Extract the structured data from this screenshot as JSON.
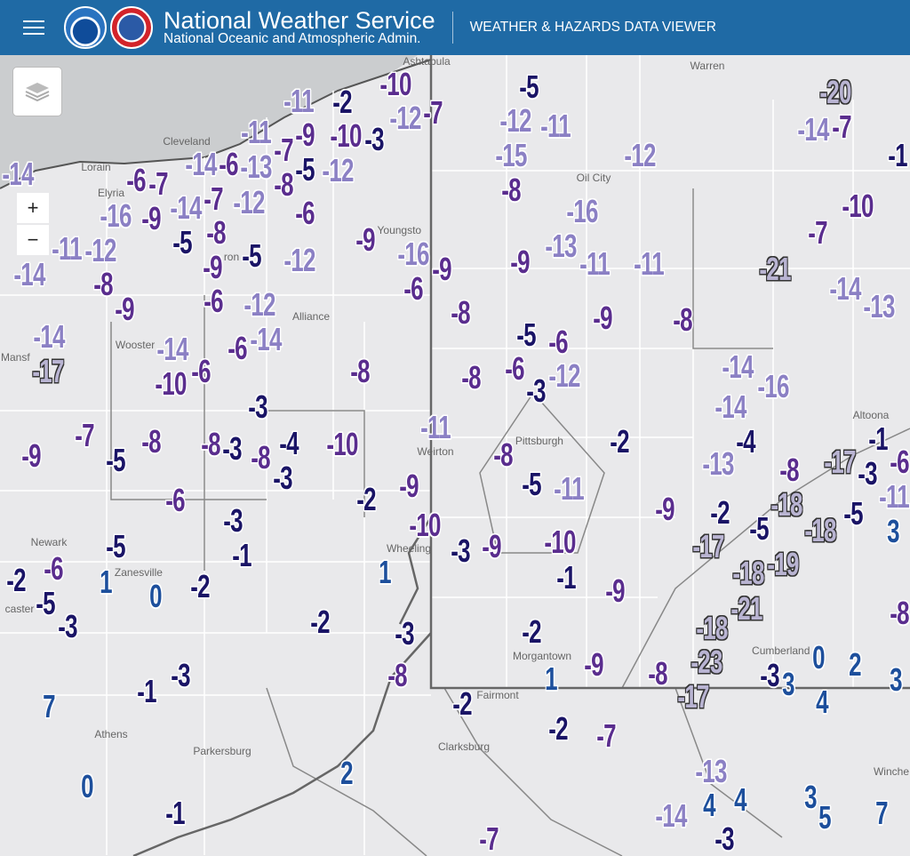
{
  "header": {
    "title": "National Weather Service",
    "subtitle": "National Oceanic and Atmospheric Admin.",
    "app_name": "WEATHER & HAZARDS DATA VIEWER",
    "menu_icon": "hamburger-icon",
    "logos": [
      "NOAA",
      "National Weather Service"
    ]
  },
  "map_controls": {
    "layers_icon": "layers-icon",
    "zoom_in": "+",
    "zoom_out": "−"
  },
  "colors": {
    "header": "#1f6aa5",
    "positive": "#1d4f9c",
    "minus_1_5": "#1a1466",
    "minus_6_10": "#5a2d8e",
    "minus_11_16": "#8b80c4",
    "minus_17_plus": "#b9b4d2"
  },
  "places": [
    "Ashtabula",
    "Warren",
    "Cleveland",
    "Lorain",
    "Elyria",
    "Oil City",
    "Youngsto",
    "ron",
    "Alliance",
    "Wooster",
    "Mansf",
    "Weirton",
    "Pittsburgh",
    "Altoona",
    "Newark",
    "Zanesville",
    "Wheeling",
    "caster",
    "Cumberland",
    "Morgantown",
    "Fairmont",
    "Athens",
    "Parkersburg",
    "Clarksburg",
    "Winche"
  ],
  "values": [
    -10,
    -12,
    -7,
    -11,
    -2,
    -11,
    -9,
    -10,
    -3,
    -7,
    -5,
    -12,
    -5,
    -12,
    -11,
    -15,
    -12,
    -20,
    -14,
    -7,
    -1,
    -6,
    -7,
    -14,
    -6,
    -13,
    -8,
    -14,
    -7,
    -12,
    -6,
    -9,
    -16,
    -8,
    -16,
    -10,
    -7,
    -14,
    -11,
    -12,
    -14,
    -8,
    -5,
    -8,
    -9,
    -5,
    -12,
    -9,
    -16,
    -6,
    -9,
    -9,
    -13,
    -11,
    -11,
    -21,
    -6,
    -12,
    -14,
    -13,
    -9,
    -8,
    -5,
    -6,
    -9,
    -8,
    -14,
    -17,
    -14,
    -6,
    -14,
    -10,
    -6,
    -8,
    -8,
    -6,
    -3,
    -12,
    -14,
    -16,
    -3,
    -14,
    -4,
    -1,
    -7,
    -9,
    -5,
    -8,
    -8,
    -3,
    -8,
    -4,
    -3,
    -10,
    -11,
    -8,
    -2,
    -13,
    -8,
    -17,
    -3,
    -6,
    -5,
    -11,
    -2,
    -9,
    -6,
    -18,
    -11,
    -9,
    -2,
    -5,
    -18,
    -5,
    3,
    -3,
    -5,
    -1,
    -10,
    -3,
    -9,
    -10,
    -17,
    -19,
    -18,
    -2,
    -6,
    -5,
    1,
    0,
    -2,
    1,
    -1,
    -9,
    -21,
    -8,
    -3,
    -2,
    -3,
    -2,
    -18,
    -23,
    -8,
    -9,
    1,
    -8,
    0,
    2,
    3,
    -3,
    3,
    4,
    -17,
    -1,
    -3,
    7,
    -2,
    -2,
    -7,
    0,
    2,
    -13,
    4,
    4,
    3,
    5,
    7,
    -14,
    -1,
    -7,
    -3
  ]
}
